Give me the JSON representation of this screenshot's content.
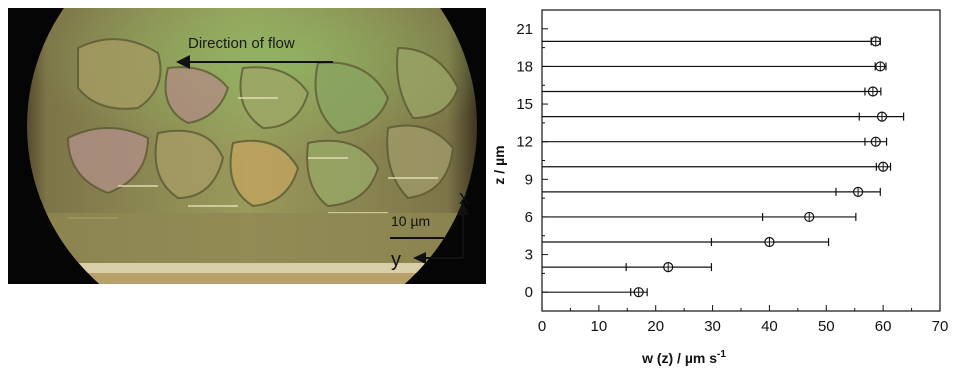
{
  "micrograph": {
    "flow_label": "Direction of flow",
    "scale_label": "10 µm",
    "axis_x_label": "x",
    "axis_y_label": "y"
  },
  "chart_data": {
    "type": "scatter",
    "title": "",
    "xlabel": "w (z) / µm s",
    "xlabel_superscript": "-1",
    "ylabel": "z / µm",
    "xlim": [
      0,
      70
    ],
    "ylim": [
      -1.5,
      22.5
    ],
    "x_ticks": [
      0,
      10,
      20,
      30,
      40,
      50,
      60,
      70
    ],
    "y_ticks": [
      0,
      3,
      6,
      9,
      12,
      15,
      18,
      21
    ],
    "grid": false,
    "legend": "none",
    "marker": "circle-with-crosshair",
    "points": [
      {
        "z": 0,
        "w": 17.0,
        "w_err_low": 15.6,
        "w_err_high": 18.5
      },
      {
        "z": 2.0,
        "w": 22.2,
        "w_err_low": 14.8,
        "w_err_high": 29.8
      },
      {
        "z": 4.0,
        "w": 40.0,
        "w_err_low": 29.8,
        "w_err_high": 50.4
      },
      {
        "z": 6.0,
        "w": 47.0,
        "w_err_low": 38.8,
        "w_err_high": 55.2
      },
      {
        "z": 8.0,
        "w": 55.6,
        "w_err_low": 51.7,
        "w_err_high": 59.5
      },
      {
        "z": 10.0,
        "w": 60.0,
        "w_err_low": 58.8,
        "w_err_high": 61.3
      },
      {
        "z": 12.0,
        "w": 58.7,
        "w_err_low": 56.8,
        "w_err_high": 60.6
      },
      {
        "z": 14.0,
        "w": 59.8,
        "w_err_low": 55.8,
        "w_err_high": 63.6
      },
      {
        "z": 16.0,
        "w": 58.2,
        "w_err_low": 56.8,
        "w_err_high": 59.6
      },
      {
        "z": 18.0,
        "w": 59.5,
        "w_err_low": 58.6,
        "w_err_high": 60.5
      },
      {
        "z": 20.0,
        "w": 58.7,
        "w_err_low": 57.9,
        "w_err_high": 59.5
      }
    ],
    "baseline_lines": "horizontal line from w=0 to each error-bar at every z level"
  }
}
